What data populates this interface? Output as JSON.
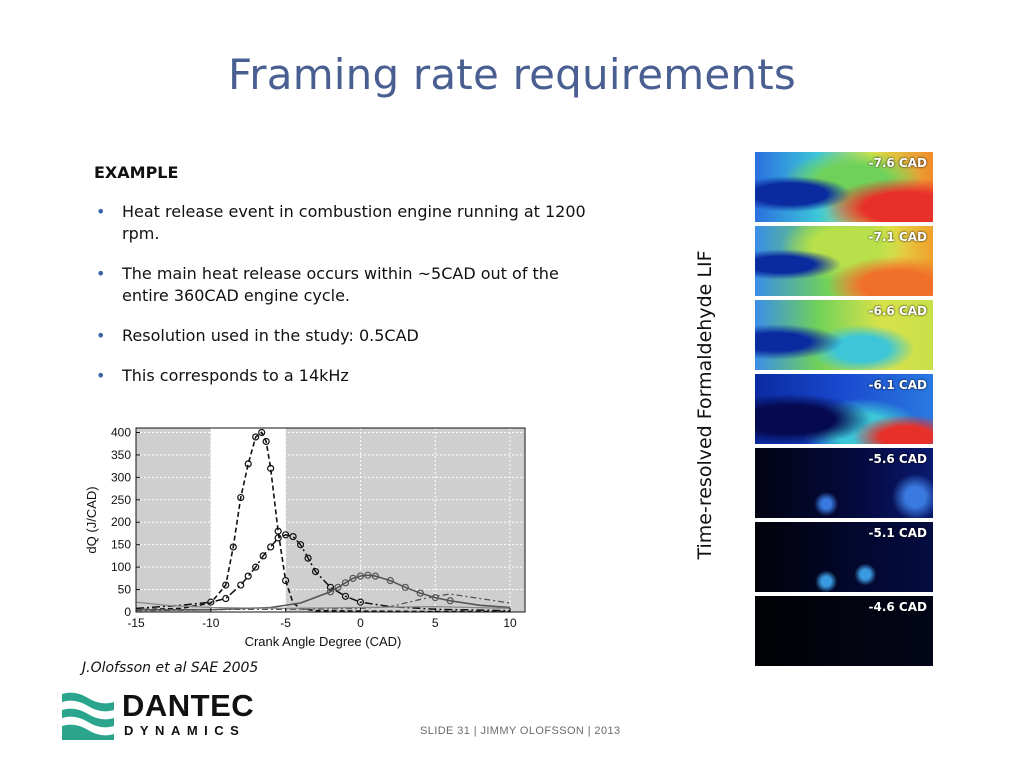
{
  "slide": {
    "title": "Framing rate requirements",
    "example_heading": "EXAMPLE",
    "bullets": [
      "Heat release event in combustion engine running at 1200 rpm.",
      "The main heat release occurs within ~5CAD out of the entire 360CAD engine cycle.",
      "Resolution used in the study: 0.5CAD",
      "This corresponds to a 14kHz"
    ],
    "citation": "J.Olofsson et al SAE 2005",
    "image_label": "Time-resolved Formaldehyde LIF",
    "frames": [
      "-7.6 CAD",
      "-7.1 CAD",
      "-6.6 CAD",
      "-6.1 CAD",
      "-5.6 CAD",
      "-5.1 CAD",
      "-4.6 CAD"
    ],
    "logo": {
      "line1": "DANTEC",
      "line2": "DYNAMICS"
    },
    "footer": "SLIDE 31  |  JIMMY OLOFSSON  |  2013",
    "colors": {
      "title": "#4a5f91",
      "bullet": "#3a63a8",
      "shade": "#cfcfcf",
      "logo_teal": "#2aa58c"
    }
  },
  "chart_data": {
    "type": "line",
    "xlabel": "Crank Angle Degree (CAD)",
    "ylabel": "dQ (J/CAD)",
    "xlim": [
      -15,
      11
    ],
    "ylim": [
      0,
      410
    ],
    "xticks": [
      -15,
      -10,
      -5,
      0,
      5,
      10
    ],
    "yticks": [
      0,
      50,
      100,
      150,
      200,
      250,
      300,
      350,
      400
    ],
    "grid": true,
    "shaded_regions": [
      [
        -15,
        -10
      ],
      [
        -5,
        11
      ]
    ],
    "series": [
      {
        "style": "dashed-markers",
        "x": [
          -15,
          -12,
          -10,
          -9,
          -8.5,
          -8,
          -7.5,
          -7,
          -6.6,
          -6.3,
          -6,
          -5.5,
          -5,
          -4.5,
          -4,
          -3,
          0,
          5,
          10
        ],
        "y": [
          5,
          8,
          20,
          60,
          145,
          255,
          330,
          390,
          400,
          380,
          320,
          180,
          70,
          20,
          8,
          3,
          2,
          1,
          1
        ]
      },
      {
        "style": "dashdot-markers",
        "x": [
          -15,
          -12,
          -10,
          -9,
          -8,
          -7.5,
          -7,
          -6.5,
          -6,
          -5.5,
          -5,
          -4.5,
          -4,
          -3.5,
          -3,
          -2,
          -1,
          0,
          2,
          5,
          10
        ],
        "y": [
          8,
          15,
          22,
          30,
          60,
          80,
          100,
          125,
          145,
          165,
          172,
          168,
          150,
          120,
          90,
          55,
          35,
          22,
          12,
          6,
          3
        ]
      },
      {
        "style": "solid-markers",
        "x": [
          -15,
          -10,
          -6,
          -4,
          -2,
          -1.5,
          -1,
          -0.5,
          0,
          0.5,
          1,
          2,
          3,
          4,
          5,
          6,
          8,
          10
        ],
        "y": [
          5,
          5,
          10,
          20,
          45,
          55,
          65,
          75,
          80,
          82,
          80,
          70,
          55,
          42,
          32,
          25,
          15,
          10
        ]
      },
      {
        "style": "dashdot",
        "x": [
          -15,
          -12,
          -10,
          -8,
          -5,
          -2,
          0,
          2,
          3,
          4,
          5,
          6,
          8,
          10
        ],
        "y": [
          3,
          4,
          5,
          6,
          6,
          7,
          8,
          12,
          20,
          28,
          35,
          40,
          30,
          20
        ]
      },
      {
        "style": "solid-thin",
        "x": [
          -15,
          -13,
          -10,
          -5,
          0,
          5,
          10
        ],
        "y": [
          22,
          15,
          10,
          8,
          10,
          12,
          8
        ]
      }
    ],
    "annotations": []
  }
}
